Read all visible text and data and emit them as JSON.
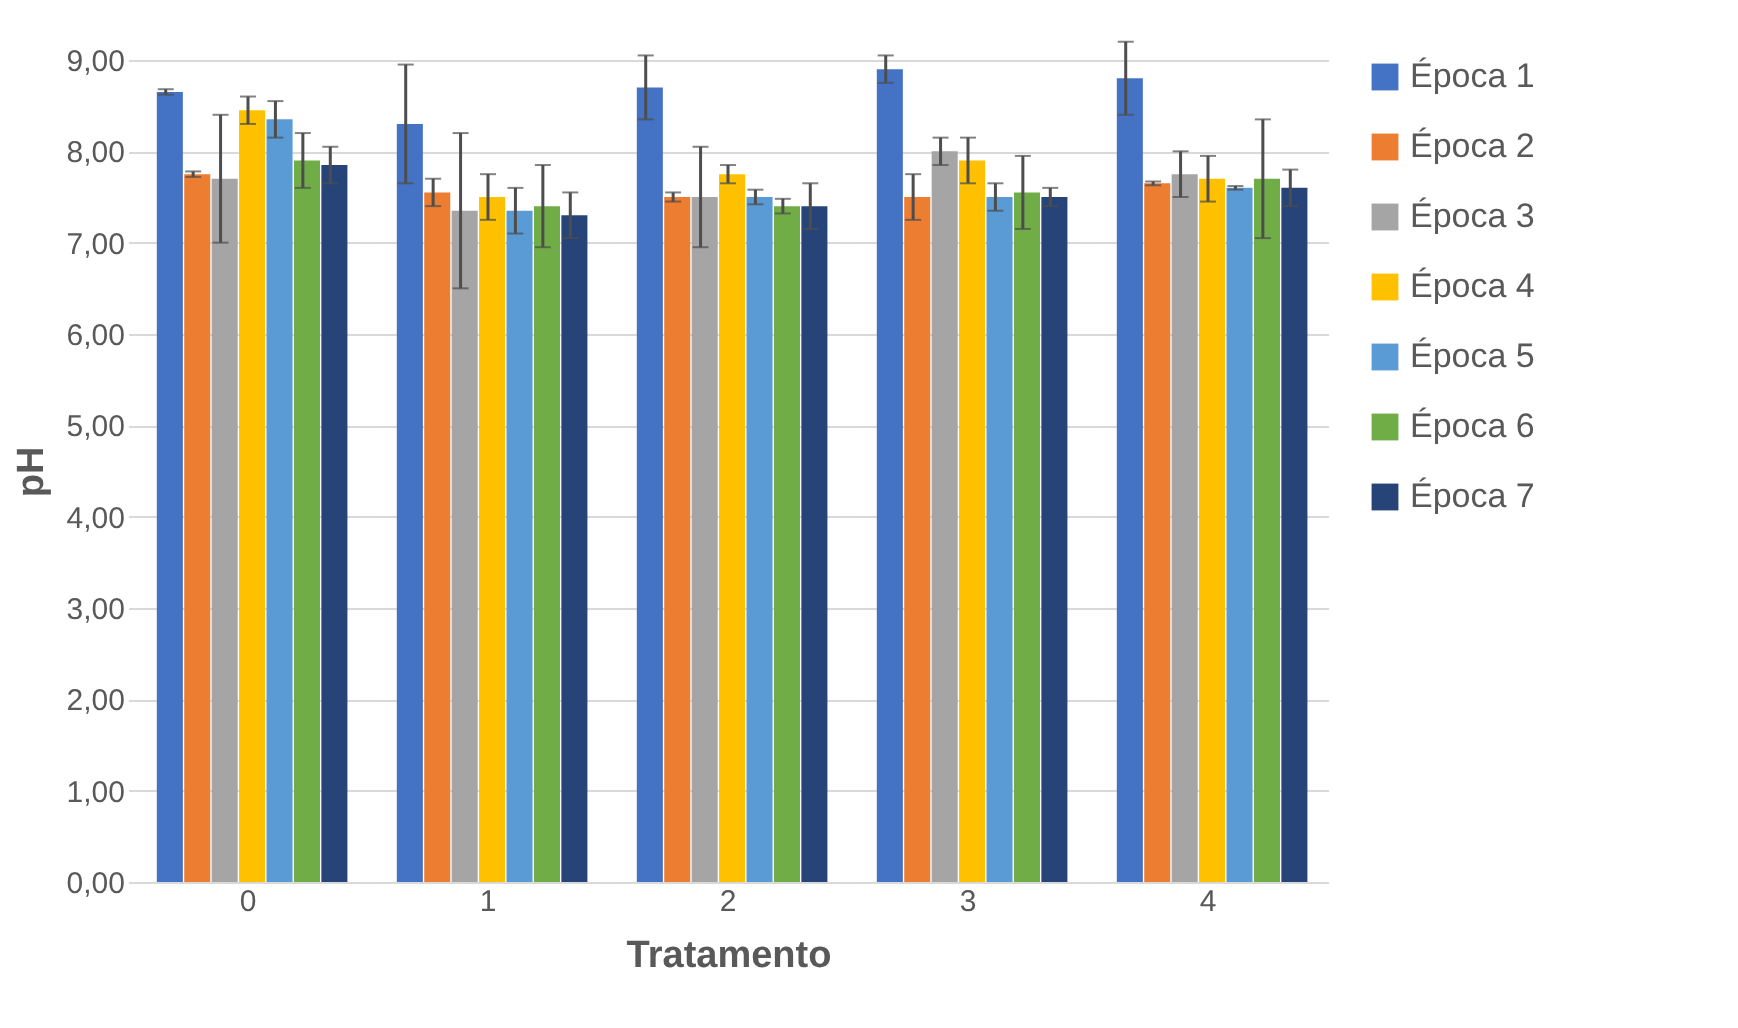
{
  "chart_data": {
    "type": "bar",
    "xlabel": "Tratamento",
    "ylabel": "pH",
    "categories": [
      "0",
      "1",
      "2",
      "3",
      "4"
    ],
    "series": [
      {
        "name": "Época 1",
        "color": "#4472c4",
        "values": [
          8.65,
          8.3,
          8.7,
          8.9,
          8.8
        ],
        "errors": [
          0.03,
          0.65,
          0.35,
          0.15,
          0.4
        ]
      },
      {
        "name": "Época 2",
        "color": "#ed7d31",
        "values": [
          7.75,
          7.55,
          7.5,
          7.5,
          7.65
        ],
        "errors": [
          0.03,
          0.15,
          0.05,
          0.25,
          0.02
        ]
      },
      {
        "name": "Época 3",
        "color": "#a5a5a5",
        "values": [
          7.7,
          7.35,
          7.5,
          8.0,
          7.75
        ],
        "errors": [
          0.7,
          0.85,
          0.55,
          0.15,
          0.25
        ]
      },
      {
        "name": "Época 4",
        "color": "#ffc000",
        "values": [
          8.45,
          7.5,
          7.75,
          7.9,
          7.7
        ],
        "errors": [
          0.15,
          0.25,
          0.1,
          0.25,
          0.25
        ]
      },
      {
        "name": "Época 5",
        "color": "#5b9bd5",
        "values": [
          8.35,
          7.35,
          7.5,
          7.5,
          7.6
        ],
        "errors": [
          0.2,
          0.25,
          0.08,
          0.15,
          0.02
        ]
      },
      {
        "name": "Época 6",
        "color": "#70ad47",
        "values": [
          7.9,
          7.4,
          7.4,
          7.55,
          7.7
        ],
        "errors": [
          0.3,
          0.45,
          0.08,
          0.4,
          0.65
        ]
      },
      {
        "name": "Época 7",
        "color": "#264478",
        "values": [
          7.85,
          7.3,
          7.4,
          7.5,
          7.6
        ],
        "errors": [
          0.2,
          0.25,
          0.25,
          0.1,
          0.2
        ]
      }
    ],
    "ylim": [
      0,
      9
    ],
    "yticks": [
      {
        "value": 0,
        "label": "0,00"
      },
      {
        "value": 1,
        "label": "1,00"
      },
      {
        "value": 2,
        "label": "2,00"
      },
      {
        "value": 3,
        "label": "3,00"
      },
      {
        "value": 4,
        "label": "4,00"
      },
      {
        "value": 5,
        "label": "5,00"
      },
      {
        "value": 6,
        "label": "6,00"
      },
      {
        "value": 7,
        "label": "7,00"
      },
      {
        "value": 8,
        "label": "8,00"
      },
      {
        "value": 9,
        "label": "9,00"
      }
    ],
    "grid": "y",
    "legend": "right"
  }
}
